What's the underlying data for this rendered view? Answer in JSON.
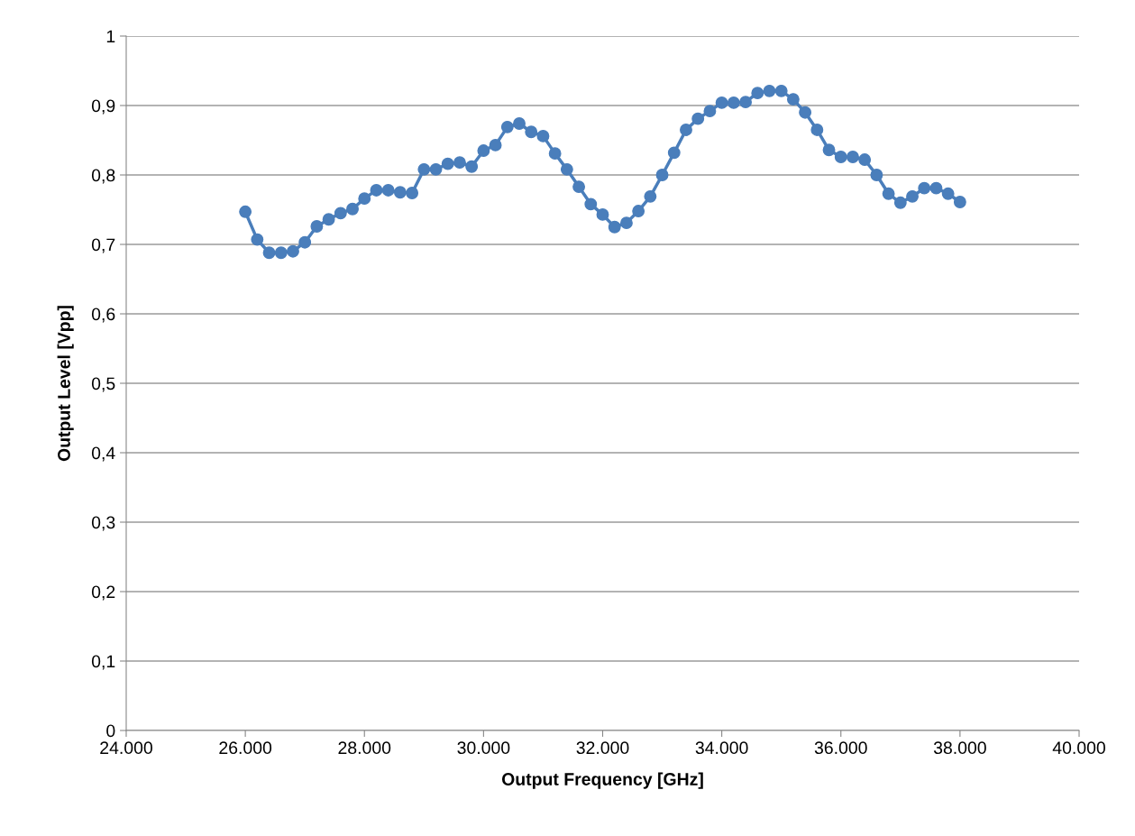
{
  "chart_data": {
    "type": "line",
    "xlabel": "Output Frequency [GHz]",
    "ylabel": "Output Level [Vpp]",
    "x": [
      26000,
      26200,
      26400,
      26600,
      26800,
      27000,
      27200,
      27400,
      27600,
      27800,
      28000,
      28200,
      28400,
      28600,
      28800,
      29000,
      29200,
      29400,
      29600,
      29800,
      30000,
      30200,
      30400,
      30600,
      30800,
      31000,
      31200,
      31400,
      31600,
      31800,
      32000,
      32200,
      32400,
      32600,
      32800,
      33000,
      33200,
      33400,
      33600,
      33800,
      34000,
      34200,
      34400,
      34600,
      34800,
      35000,
      35200,
      35400,
      35600,
      35800,
      36000,
      36200,
      36400,
      36600,
      36800,
      37000,
      37200,
      37400,
      37600,
      37800,
      38000
    ],
    "series": [
      {
        "color": "#4a7ebb",
        "values": [
          0.747,
          0.707,
          0.688,
          0.688,
          0.69,
          0.703,
          0.726,
          0.736,
          0.745,
          0.751,
          0.766,
          0.778,
          0.778,
          0.775,
          0.774,
          0.808,
          0.808,
          0.816,
          0.818,
          0.812,
          0.835,
          0.843,
          0.869,
          0.874,
          0.862,
          0.856,
          0.831,
          0.808,
          0.783,
          0.758,
          0.743,
          0.725,
          0.731,
          0.748,
          0.769,
          0.8,
          0.832,
          0.865,
          0.881,
          0.892,
          0.904,
          0.904,
          0.905,
          0.918,
          0.921,
          0.921,
          0.909,
          0.89,
          0.865,
          0.836,
          0.826,
          0.826,
          0.822,
          0.8,
          0.773,
          0.76,
          0.769,
          0.781,
          0.781,
          0.773,
          0.761
        ]
      }
    ],
    "xlim": [
      24000,
      40000
    ],
    "xticks": [
      {
        "value": 24000,
        "label": "24.000"
      },
      {
        "value": 26000,
        "label": "26.000"
      },
      {
        "value": 28000,
        "label": "28.000"
      },
      {
        "value": 30000,
        "label": "30.000"
      },
      {
        "value": 32000,
        "label": "32.000"
      },
      {
        "value": 34000,
        "label": "34.000"
      },
      {
        "value": 36000,
        "label": "36.000"
      },
      {
        "value": 38000,
        "label": "38.000"
      },
      {
        "value": 40000,
        "label": "40.000"
      }
    ],
    "ylim": [
      0,
      1
    ],
    "yticks": [
      0,
      {
        "value": 0.1,
        "label": "0,1"
      },
      {
        "value": 0.2,
        "label": "0,2"
      },
      {
        "value": 0.3,
        "label": "0,3"
      },
      {
        "value": 0.4,
        "label": "0,4"
      },
      {
        "value": 0.5,
        "label": "0,5"
      },
      {
        "value": 0.6,
        "label": "0,6"
      },
      {
        "value": 0.7,
        "label": "0,7"
      },
      {
        "value": 0.8,
        "label": "0,8"
      },
      {
        "value": 0.9,
        "label": "0,9"
      },
      1
    ],
    "grid": "y",
    "marker": "circle",
    "line_style": "solid"
  }
}
